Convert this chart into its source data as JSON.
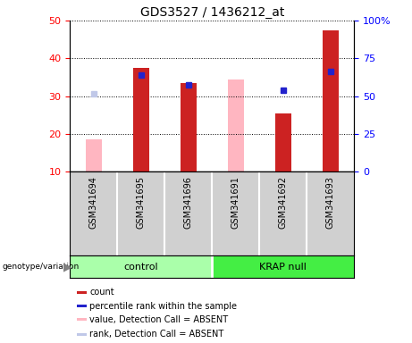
{
  "title": "GDS3527 / 1436212_at",
  "samples": [
    "GSM341694",
    "GSM341695",
    "GSM341696",
    "GSM341691",
    "GSM341692",
    "GSM341693"
  ],
  "count_values": [
    null,
    37.5,
    33.5,
    null,
    25.5,
    47.5
  ],
  "rank_values": [
    null,
    35.5,
    33.0,
    null,
    31.5,
    36.5
  ],
  "absent_value_values": [
    18.5,
    null,
    null,
    34.5,
    null,
    null
  ],
  "absent_rank_values": [
    30.5,
    null,
    null,
    null,
    null,
    null
  ],
  "ylim_left": [
    10,
    50
  ],
  "ylim_right": [
    0,
    100
  ],
  "yticks_left": [
    10,
    20,
    30,
    40,
    50
  ],
  "ytick_labels_right": [
    "0",
    "25",
    "50",
    "75",
    "100%"
  ],
  "count_color": "#cc2222",
  "rank_color": "#2222cc",
  "absent_value_color": "#ffb6c1",
  "absent_rank_color": "#c0c8e8",
  "control_color": "#aaffaa",
  "krap_color": "#44ee44",
  "sample_bg": "#d0d0d0",
  "legend_items": [
    {
      "label": "count",
      "color": "#cc2222"
    },
    {
      "label": "percentile rank within the sample",
      "color": "#2222cc"
    },
    {
      "label": "value, Detection Call = ABSENT",
      "color": "#ffb6c1"
    },
    {
      "label": "rank, Detection Call = ABSENT",
      "color": "#c0c8e8"
    }
  ]
}
